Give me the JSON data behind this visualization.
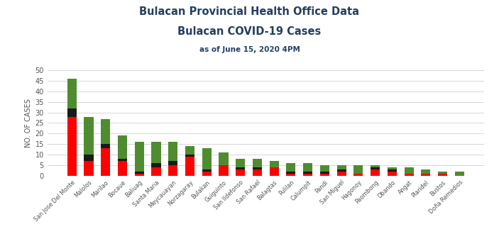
{
  "title_line1": "Bulacan Provincial Health Office Data",
  "title_line2": "Bulacan COVID-19 Cases",
  "title_line3": "as of June 15, 2020 4PM",
  "ylabel": "NO. OF CASES",
  "categories": [
    "San Jose Del Monte",
    "Malolos",
    "Marilao",
    "Bocaue",
    "Baliuag",
    "Santa Maria",
    "Meycauayan",
    "Norzagaray",
    "Bulakan",
    "Guiguinto",
    "San Ildefonso",
    "San Rafael",
    "Balagtas",
    "Pulilan",
    "Calumpit",
    "Pandi",
    "San Miguel",
    "Hagonoy",
    "Paombong",
    "Obando",
    "Angat",
    "Plaridel",
    "Bustos",
    "Doña Remedios"
  ],
  "active": [
    28,
    7,
    13,
    7,
    1,
    4,
    5,
    9,
    2,
    5,
    3,
    3,
    4,
    1,
    1,
    1,
    2,
    1,
    3,
    2,
    1,
    1,
    1,
    0
  ],
  "death": [
    4,
    3,
    2,
    1,
    1,
    2,
    2,
    1,
    1,
    0,
    1,
    1,
    0,
    1,
    1,
    1,
    1,
    0,
    1,
    1,
    0,
    0,
    0,
    0
  ],
  "recovered": [
    14,
    18,
    12,
    11,
    14,
    10,
    9,
    4,
    10,
    6,
    4,
    4,
    3,
    4,
    4,
    3,
    2,
    4,
    1,
    1,
    3,
    2,
    1,
    2
  ],
  "active_color": "#ff0000",
  "death_color": "#1a1a1a",
  "recovered_color": "#4e8c2f",
  "title_color": "#243f60",
  "bg_color": "#ffffff",
  "grid_color": "#d0d0d0",
  "ylim": [
    0,
    50
  ],
  "yticks": [
    0,
    5,
    10,
    15,
    20,
    25,
    30,
    35,
    40,
    45,
    50
  ]
}
